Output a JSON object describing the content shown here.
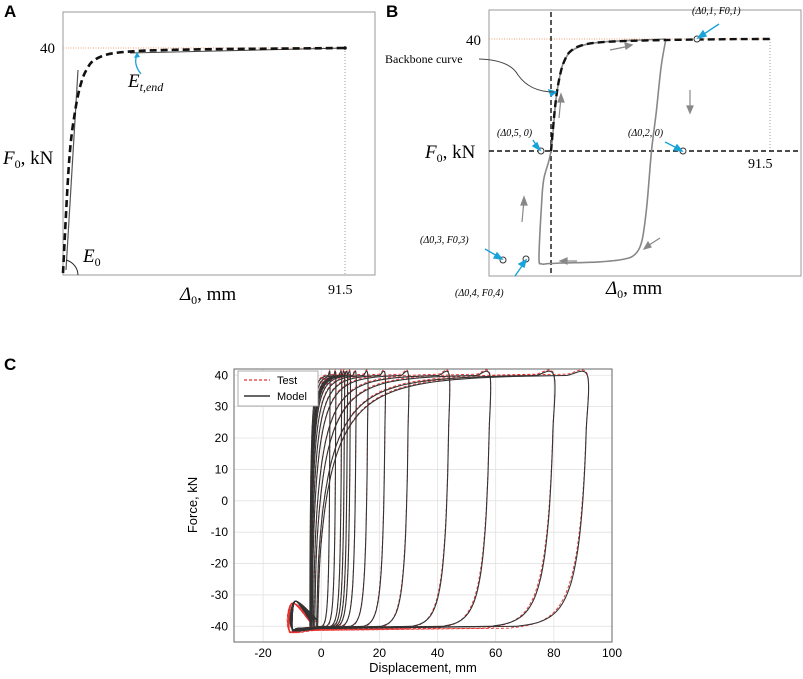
{
  "panels": {
    "a": {
      "label": "A",
      "y_tick": "40",
      "x_tick": "91.5",
      "ylabel_main": "F",
      "ylabel_sub": "0",
      "ylabel_unit": ", kN",
      "xlabel_main": "Δ",
      "xlabel_sub": "0",
      "xlabel_unit": ", mm",
      "e0_main": "E",
      "e0_sub": "0",
      "etend_main": "E",
      "etend_sub": "t,end"
    },
    "b": {
      "label": "B",
      "y_tick": "40",
      "x_tick": "91.5",
      "ylabel_main": "F",
      "ylabel_sub": "0",
      "ylabel_unit": ", kN",
      "xlabel_main": "Δ",
      "xlabel_sub": "0",
      "xlabel_unit": ", mm",
      "backbone": "Backbone curve",
      "points": {
        "p1": "(Δ0,1, F0,1)",
        "p2": "(Δ0,2, 0)",
        "p3": "(Δ0,3, F0,3)",
        "p4": "(Δ0,4, F0,4)",
        "p5": "(Δ0,5, 0)"
      }
    },
    "c": {
      "label": "C"
    }
  },
  "chart_data": [
    {
      "type": "line",
      "panel": "A",
      "title": "",
      "xlabel": "Δ0, mm",
      "ylabel": "F0, kN",
      "xlim": [
        0,
        100
      ],
      "ylim": [
        0,
        43
      ],
      "series": [
        {
          "name": "Backbone",
          "x": [
            0,
            2,
            4,
            6,
            8,
            10,
            14,
            20,
            30,
            50,
            70,
            91.5
          ],
          "y": [
            0,
            20,
            29,
            34,
            36.5,
            37.8,
            38.8,
            39.3,
            39.6,
            39.8,
            39.9,
            40
          ]
        }
      ],
      "annotations": [
        "E0",
        "Et,end",
        "40",
        "91.5"
      ]
    },
    {
      "type": "line",
      "panel": "B",
      "title": "",
      "xlabel": "Δ0, mm",
      "ylabel": "F0, kN",
      "xlim": [
        -15,
        100
      ],
      "ylim": [
        -42,
        44
      ],
      "series": [
        {
          "name": "Backbone curve",
          "x": [
            0,
            2,
            4,
            6,
            8,
            12,
            20,
            40,
            70,
            91.5
          ],
          "y": [
            0,
            18,
            28,
            33,
            35.5,
            37.5,
            38.8,
            39.5,
            39.9,
            40
          ]
        },
        {
          "name": "Hysteresis loop",
          "x": [
            48,
            46,
            44,
            42,
            40,
            38,
            35,
            30,
            20,
            5,
            -1,
            -4,
            -5,
            -4,
            -3,
            0,
            2,
            4,
            6,
            10,
            20,
            48
          ],
          "y": [
            40,
            30,
            14,
            0,
            -20,
            -32,
            -37,
            -38.7,
            -39.6,
            -40,
            -40.2,
            -40.3,
            -38,
            -20,
            -10,
            0,
            18,
            28,
            33,
            36.5,
            38.8,
            40
          ]
        }
      ],
      "annotations": [
        "(Δ0,1, F0,1)",
        "(Δ0,2, 0)",
        "(Δ0,3, F0,3)",
        "(Δ0,4, F0,4)",
        "(Δ0,5, 0)",
        "40",
        "91.5",
        "Backbone curve"
      ]
    },
    {
      "type": "line",
      "panel": "C",
      "title": "",
      "xlabel": "Displacement, mm",
      "ylabel": "Force, kN",
      "xlim": [
        -30,
        100
      ],
      "ylim": [
        -45,
        42
      ],
      "grid": true,
      "legend": "top-left",
      "xticks": [
        "-20",
        "0",
        "20",
        "40",
        "60",
        "80",
        "100"
      ],
      "yticks": [
        "40",
        "30",
        "20",
        "10",
        "0",
        "-10",
        "-20",
        "-30",
        "-40"
      ],
      "series": [
        {
          "name": "Test",
          "style": "dashed",
          "color": "#e8312f",
          "peaks": [
            3,
            5,
            7,
            8,
            9,
            10,
            12,
            16,
            22,
            30,
            44,
            58,
            80,
            91.5
          ]
        },
        {
          "name": "Model",
          "style": "solid",
          "color": "#333333",
          "peaks": [
            3,
            5,
            7,
            8,
            9,
            10,
            12,
            16,
            22,
            30,
            44,
            58,
            80,
            91.5
          ]
        }
      ]
    }
  ]
}
